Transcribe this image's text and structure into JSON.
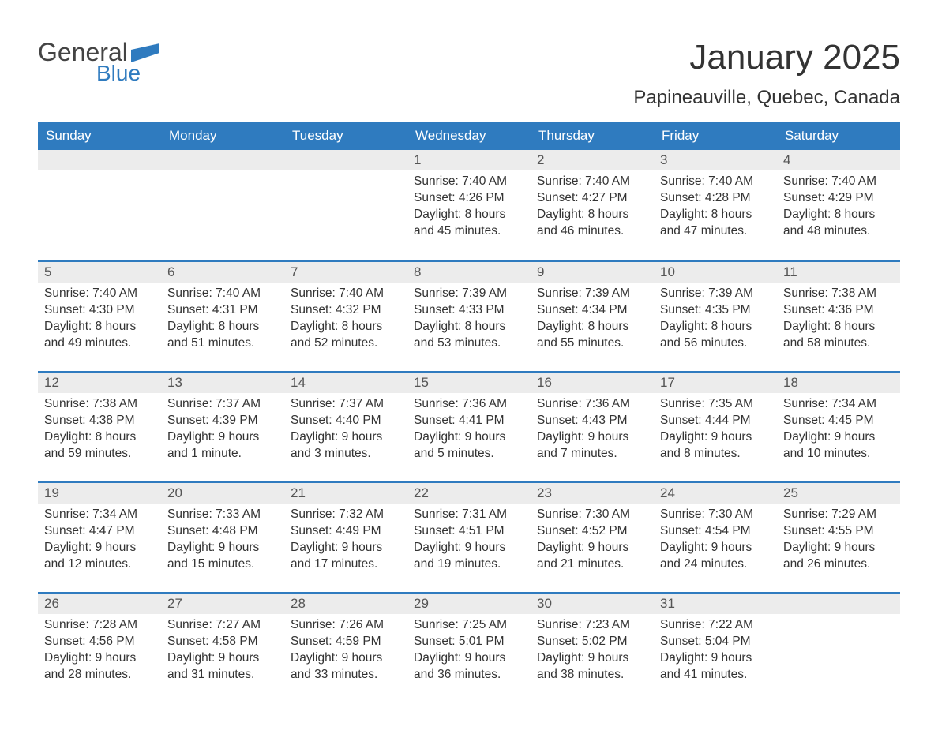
{
  "brand": {
    "part1": "General",
    "part2": "Blue",
    "flag_color": "#2f7bbf"
  },
  "title": "January 2025",
  "location": "Papineauville, Quebec, Canada",
  "colors": {
    "header_bg": "#2f7bbf",
    "header_text": "#ffffff",
    "daynum_bg": "#ececec",
    "row_border": "#2f7bbf",
    "body_text": "#333333"
  },
  "weekdays": [
    "Sunday",
    "Monday",
    "Tuesday",
    "Wednesday",
    "Thursday",
    "Friday",
    "Saturday"
  ],
  "weeks": [
    [
      null,
      null,
      null,
      {
        "n": "1",
        "sr": "Sunrise: 7:40 AM",
        "ss": "Sunset: 4:26 PM",
        "d1": "Daylight: 8 hours",
        "d2": "and 45 minutes."
      },
      {
        "n": "2",
        "sr": "Sunrise: 7:40 AM",
        "ss": "Sunset: 4:27 PM",
        "d1": "Daylight: 8 hours",
        "d2": "and 46 minutes."
      },
      {
        "n": "3",
        "sr": "Sunrise: 7:40 AM",
        "ss": "Sunset: 4:28 PM",
        "d1": "Daylight: 8 hours",
        "d2": "and 47 minutes."
      },
      {
        "n": "4",
        "sr": "Sunrise: 7:40 AM",
        "ss": "Sunset: 4:29 PM",
        "d1": "Daylight: 8 hours",
        "d2": "and 48 minutes."
      }
    ],
    [
      {
        "n": "5",
        "sr": "Sunrise: 7:40 AM",
        "ss": "Sunset: 4:30 PM",
        "d1": "Daylight: 8 hours",
        "d2": "and 49 minutes."
      },
      {
        "n": "6",
        "sr": "Sunrise: 7:40 AM",
        "ss": "Sunset: 4:31 PM",
        "d1": "Daylight: 8 hours",
        "d2": "and 51 minutes."
      },
      {
        "n": "7",
        "sr": "Sunrise: 7:40 AM",
        "ss": "Sunset: 4:32 PM",
        "d1": "Daylight: 8 hours",
        "d2": "and 52 minutes."
      },
      {
        "n": "8",
        "sr": "Sunrise: 7:39 AM",
        "ss": "Sunset: 4:33 PM",
        "d1": "Daylight: 8 hours",
        "d2": "and 53 minutes."
      },
      {
        "n": "9",
        "sr": "Sunrise: 7:39 AM",
        "ss": "Sunset: 4:34 PM",
        "d1": "Daylight: 8 hours",
        "d2": "and 55 minutes."
      },
      {
        "n": "10",
        "sr": "Sunrise: 7:39 AM",
        "ss": "Sunset: 4:35 PM",
        "d1": "Daylight: 8 hours",
        "d2": "and 56 minutes."
      },
      {
        "n": "11",
        "sr": "Sunrise: 7:38 AM",
        "ss": "Sunset: 4:36 PM",
        "d1": "Daylight: 8 hours",
        "d2": "and 58 minutes."
      }
    ],
    [
      {
        "n": "12",
        "sr": "Sunrise: 7:38 AM",
        "ss": "Sunset: 4:38 PM",
        "d1": "Daylight: 8 hours",
        "d2": "and 59 minutes."
      },
      {
        "n": "13",
        "sr": "Sunrise: 7:37 AM",
        "ss": "Sunset: 4:39 PM",
        "d1": "Daylight: 9 hours",
        "d2": "and 1 minute."
      },
      {
        "n": "14",
        "sr": "Sunrise: 7:37 AM",
        "ss": "Sunset: 4:40 PM",
        "d1": "Daylight: 9 hours",
        "d2": "and 3 minutes."
      },
      {
        "n": "15",
        "sr": "Sunrise: 7:36 AM",
        "ss": "Sunset: 4:41 PM",
        "d1": "Daylight: 9 hours",
        "d2": "and 5 minutes."
      },
      {
        "n": "16",
        "sr": "Sunrise: 7:36 AM",
        "ss": "Sunset: 4:43 PM",
        "d1": "Daylight: 9 hours",
        "d2": "and 7 minutes."
      },
      {
        "n": "17",
        "sr": "Sunrise: 7:35 AM",
        "ss": "Sunset: 4:44 PM",
        "d1": "Daylight: 9 hours",
        "d2": "and 8 minutes."
      },
      {
        "n": "18",
        "sr": "Sunrise: 7:34 AM",
        "ss": "Sunset: 4:45 PM",
        "d1": "Daylight: 9 hours",
        "d2": "and 10 minutes."
      }
    ],
    [
      {
        "n": "19",
        "sr": "Sunrise: 7:34 AM",
        "ss": "Sunset: 4:47 PM",
        "d1": "Daylight: 9 hours",
        "d2": "and 12 minutes."
      },
      {
        "n": "20",
        "sr": "Sunrise: 7:33 AM",
        "ss": "Sunset: 4:48 PM",
        "d1": "Daylight: 9 hours",
        "d2": "and 15 minutes."
      },
      {
        "n": "21",
        "sr": "Sunrise: 7:32 AM",
        "ss": "Sunset: 4:49 PM",
        "d1": "Daylight: 9 hours",
        "d2": "and 17 minutes."
      },
      {
        "n": "22",
        "sr": "Sunrise: 7:31 AM",
        "ss": "Sunset: 4:51 PM",
        "d1": "Daylight: 9 hours",
        "d2": "and 19 minutes."
      },
      {
        "n": "23",
        "sr": "Sunrise: 7:30 AM",
        "ss": "Sunset: 4:52 PM",
        "d1": "Daylight: 9 hours",
        "d2": "and 21 minutes."
      },
      {
        "n": "24",
        "sr": "Sunrise: 7:30 AM",
        "ss": "Sunset: 4:54 PM",
        "d1": "Daylight: 9 hours",
        "d2": "and 24 minutes."
      },
      {
        "n": "25",
        "sr": "Sunrise: 7:29 AM",
        "ss": "Sunset: 4:55 PM",
        "d1": "Daylight: 9 hours",
        "d2": "and 26 minutes."
      }
    ],
    [
      {
        "n": "26",
        "sr": "Sunrise: 7:28 AM",
        "ss": "Sunset: 4:56 PM",
        "d1": "Daylight: 9 hours",
        "d2": "and 28 minutes."
      },
      {
        "n": "27",
        "sr": "Sunrise: 7:27 AM",
        "ss": "Sunset: 4:58 PM",
        "d1": "Daylight: 9 hours",
        "d2": "and 31 minutes."
      },
      {
        "n": "28",
        "sr": "Sunrise: 7:26 AM",
        "ss": "Sunset: 4:59 PM",
        "d1": "Daylight: 9 hours",
        "d2": "and 33 minutes."
      },
      {
        "n": "29",
        "sr": "Sunrise: 7:25 AM",
        "ss": "Sunset: 5:01 PM",
        "d1": "Daylight: 9 hours",
        "d2": "and 36 minutes."
      },
      {
        "n": "30",
        "sr": "Sunrise: 7:23 AM",
        "ss": "Sunset: 5:02 PM",
        "d1": "Daylight: 9 hours",
        "d2": "and 38 minutes."
      },
      {
        "n": "31",
        "sr": "Sunrise: 7:22 AM",
        "ss": "Sunset: 5:04 PM",
        "d1": "Daylight: 9 hours",
        "d2": "and 41 minutes."
      },
      null
    ]
  ]
}
